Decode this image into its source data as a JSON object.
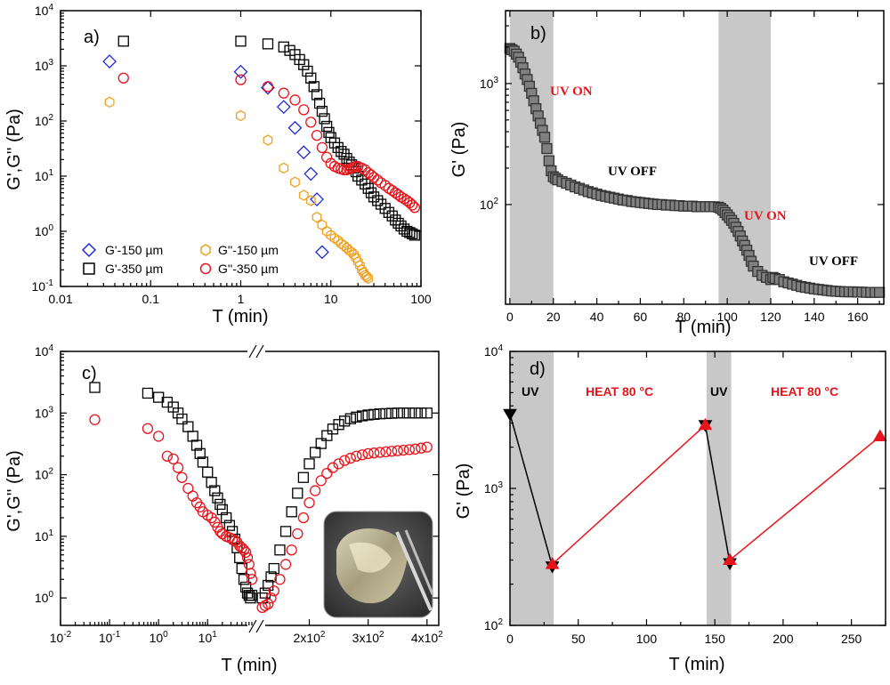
{
  "panels": {
    "a": {
      "label": "a)",
      "xlabel": "T (min)",
      "ylabel": "G',G'' (Pa)",
      "x_ticks": [
        "0.01",
        "0.1",
        "1",
        "10",
        "100"
      ],
      "legend": [
        "G'-150 µm",
        "G''-150 µm",
        "G'-350 µm",
        "G''-350 µm"
      ]
    },
    "b": {
      "label": "b)",
      "xlabel": "T (min)",
      "ylabel": "G' (Pa)",
      "x_ticks": [
        "0",
        "20",
        "40",
        "60",
        "80",
        "100",
        "120",
        "140",
        "160"
      ],
      "annotations": [
        "UV ON",
        "UV OFF",
        "UV ON",
        "UV OFF"
      ]
    },
    "c": {
      "label": "c)",
      "xlabel": "T (min)",
      "ylabel": "G',G'' (Pa)",
      "x_ticks_left": [
        "10",
        "10",
        "10",
        "10"
      ],
      "x_ticks_left_exp": [
        "-2",
        "-1",
        "0",
        "1"
      ],
      "x_ticks_right": [
        "2x10",
        "3x10",
        "4x10"
      ],
      "x_ticks_right_exp": [
        "2",
        "2",
        "2"
      ]
    },
    "d": {
      "label": "d)",
      "xlabel": "T (min)",
      "ylabel": "G' (Pa)",
      "x_ticks": [
        "0",
        "50",
        "100",
        "150",
        "200",
        "250"
      ],
      "annotations": [
        "UV",
        "HEAT 80 °C",
        "UV",
        "HEAT 80 °C"
      ]
    }
  },
  "colors": {
    "black": "#000000",
    "blue": "#1f2bd6",
    "orange": "#f0a020",
    "red": "#e8141b",
    "shade": "#c8c8c8",
    "gray_marker": "#808080"
  },
  "chart_data": [
    {
      "panel": "a",
      "type": "scatter",
      "x_scale": "log",
      "y_scale": "log",
      "xlim": [
        0.01,
        100
      ],
      "ylim": [
        0.1,
        10000
      ],
      "series": [
        {
          "name": "G'-150 µm",
          "marker": "diamond",
          "color": "blue",
          "x": [
            0.035,
            1,
            2,
            3,
            4,
            5,
            6,
            7,
            8
          ],
          "y": [
            1200,
            780,
            400,
            180,
            75,
            27,
            11,
            3.8,
            0.42
          ]
        },
        {
          "name": "G''-150 µm",
          "marker": "hexagon",
          "color": "orange",
          "x": [
            0.035,
            1,
            2,
            3,
            4,
            5,
            6,
            7,
            8,
            9,
            10,
            11,
            12,
            13,
            14,
            15,
            16,
            17,
            18,
            19,
            20,
            21,
            22,
            23,
            24,
            25,
            26
          ],
          "y": [
            220,
            125,
            45,
            14,
            7.8,
            4.5,
            3.6,
            1.8,
            1.3,
            1.0,
            0.85,
            0.75,
            0.68,
            0.6,
            0.55,
            0.5,
            0.45,
            0.42,
            0.38,
            0.33,
            0.28,
            0.24,
            0.2,
            0.18,
            0.16,
            0.15,
            0.14
          ]
        },
        {
          "name": "G'-350 µm",
          "marker": "square",
          "color": "black",
          "x": [
            0.05,
            1,
            2,
            3,
            3.5,
            4,
            4.5,
            5,
            5.5,
            6,
            6.5,
            7,
            7.5,
            8,
            8.5,
            9,
            9.5,
            10,
            11,
            12,
            13,
            14,
            15,
            16,
            17,
            18,
            19,
            20,
            22,
            24,
            26,
            28,
            30,
            33,
            36,
            40,
            44,
            48,
            52,
            56,
            60,
            65,
            70,
            75,
            80,
            85
          ],
          "y": [
            2800,
            2800,
            2500,
            2200,
            1900,
            1600,
            1300,
            1050,
            800,
            600,
            420,
            300,
            210,
            150,
            110,
            80,
            62,
            50,
            40,
            33,
            28,
            25,
            21,
            18,
            16,
            14,
            12,
            10,
            8.5,
            7.2,
            6,
            5,
            4.2,
            3.6,
            3.1,
            2.6,
            2.2,
            1.9,
            1.6,
            1.4,
            1.25,
            1.1,
            1.0,
            0.95,
            0.9,
            0.85
          ]
        },
        {
          "name": "G''-350 µm",
          "marker": "circle",
          "color": "red",
          "x": [
            0.05,
            1,
            2,
            3,
            4,
            5,
            6,
            7,
            8,
            9,
            10,
            11,
            12,
            13,
            14,
            15,
            16,
            17,
            18,
            19,
            20,
            22,
            24,
            26,
            28,
            30,
            33,
            36,
            40,
            44,
            48,
            52,
            56,
            60,
            65,
            70,
            75,
            80,
            85
          ],
          "y": [
            600,
            560,
            420,
            320,
            240,
            160,
            95,
            55,
            33,
            22,
            17,
            15,
            14,
            13.5,
            13,
            13,
            13.5,
            14,
            14.5,
            15,
            15,
            14,
            13,
            11.5,
            10.5,
            9.5,
            8.5,
            7.6,
            6.8,
            6.0,
            5.5,
            5.0,
            4.6,
            4.2,
            3.9,
            3.6,
            3.3,
            3.0,
            2.7
          ]
        }
      ]
    },
    {
      "panel": "b",
      "type": "scatter",
      "x_scale": "linear",
      "y_scale": "log",
      "xlim": [
        -2,
        172
      ],
      "ylim": [
        15,
        4000
      ],
      "shaded_x": [
        [
          0,
          20
        ],
        [
          96,
          120
        ]
      ],
      "series": [
        {
          "name": "G'",
          "marker": "square",
          "color": "gray_marker",
          "x": [
            0,
            1,
            2,
            3,
            4,
            5,
            6,
            7,
            8,
            9,
            10,
            11,
            12,
            13,
            14,
            15,
            16,
            17,
            18,
            19,
            20,
            21,
            22,
            24,
            26,
            28,
            30,
            32,
            34,
            36,
            38,
            40,
            42,
            44,
            46,
            48,
            50,
            52,
            54,
            56,
            58,
            60,
            62,
            64,
            66,
            68,
            70,
            72,
            74,
            76,
            78,
            80,
            82,
            84,
            86,
            88,
            90,
            92,
            94,
            96,
            97,
            98,
            99,
            100,
            101,
            102,
            103,
            104,
            105,
            106,
            107,
            108,
            109,
            110,
            111,
            112,
            114,
            116,
            118,
            120,
            121,
            122,
            124,
            126,
            128,
            130,
            132,
            134,
            136,
            138,
            140,
            142,
            144,
            146,
            148,
            150,
            152,
            154,
            156,
            158,
            160,
            162,
            164,
            166,
            168,
            170
          ],
          "y": [
            1950,
            1900,
            1850,
            1750,
            1650,
            1500,
            1350,
            1200,
            1080,
            950,
            830,
            720,
            620,
            540,
            470,
            410,
            360,
            290,
            230,
            190,
            170,
            165,
            160,
            155,
            150,
            145,
            140,
            136,
            132,
            128,
            125,
            122,
            119,
            117,
            115,
            113,
            111,
            109,
            108,
            106,
            105,
            104,
            103,
            102,
            101,
            100,
            100,
            99,
            99,
            98,
            98,
            97,
            97,
            97,
            96,
            96,
            96,
            96,
            96,
            95,
            93,
            90,
            86,
            82,
            78,
            74,
            70,
            65,
            60,
            55,
            50,
            46,
            42,
            38,
            34,
            31,
            28,
            26,
            25,
            24,
            25,
            24.5,
            24,
            23,
            22.5,
            22,
            21.5,
            21,
            20.7,
            20.4,
            20.1,
            19.9,
            19.7,
            19.5,
            19.3,
            19.2,
            19.1,
            19,
            19,
            19,
            18.9,
            18.9,
            18.8,
            18.8,
            18.8,
            18.8
          ]
        }
      ]
    },
    {
      "panel": "c",
      "type": "scatter",
      "x_scale": "broken-log-linear",
      "y_scale": "log",
      "ylim": [
        0.5,
        10000
      ],
      "series": [
        {
          "name": "G'",
          "marker": "square",
          "color": "black",
          "x": [
            0.05,
            0.6,
            1,
            1.5,
            2,
            2.5,
            3,
            4,
            5,
            6,
            7,
            8,
            10,
            12,
            14,
            16,
            18,
            20,
            24,
            28,
            32,
            36,
            40,
            45,
            50,
            55,
            60,
            65,
            70,
            75,
            80,
            120,
            125,
            130,
            135,
            140,
            150,
            160,
            170,
            180,
            190,
            200,
            210,
            220,
            230,
            240,
            250,
            260,
            270,
            280,
            290,
            300,
            310,
            320,
            330,
            340,
            350,
            360,
            370,
            380,
            390,
            400
          ],
          "y": [
            2600,
            2100,
            1800,
            1500,
            1250,
            1000,
            800,
            600,
            420,
            300,
            220,
            160,
            110,
            75,
            55,
            42,
            33,
            27,
            20,
            15,
            12,
            9,
            6.5,
            4.5,
            3,
            2,
            1.5,
            1.2,
            1.1,
            1.0,
            1.1,
            1.0,
            1.2,
            1.6,
            2.2,
            3,
            6,
            12,
            25,
            50,
            90,
            150,
            230,
            320,
            430,
            550,
            650,
            740,
            810,
            860,
            900,
            930,
            950,
            970,
            980,
            990,
            1000,
            1000,
            1000,
            1000,
            1000,
            1000
          ]
        },
        {
          "name": "G''",
          "marker": "circle",
          "color": "red",
          "x": [
            0.05,
            0.6,
            1,
            1.5,
            2,
            2.5,
            3,
            4,
            5,
            6,
            7,
            8,
            10,
            12,
            14,
            16,
            18,
            20,
            24,
            28,
            32,
            36,
            40,
            45,
            50,
            55,
            60,
            65,
            70,
            75,
            80,
            120,
            125,
            130,
            135,
            140,
            150,
            160,
            170,
            180,
            190,
            200,
            210,
            220,
            230,
            240,
            250,
            260,
            270,
            280,
            290,
            300,
            310,
            320,
            330,
            340,
            350,
            360,
            370,
            380,
            390,
            400
          ],
          "y": [
            780,
            560,
            420,
            200,
            180,
            130,
            90,
            60,
            45,
            35,
            30,
            25,
            22,
            20,
            17,
            14,
            12,
            11,
            10,
            9.5,
            9,
            8.5,
            8,
            7,
            6.5,
            6,
            5.5,
            4.5,
            3.5,
            2.5,
            2.0,
            0.7,
            0.75,
            0.8,
            1.0,
            1.3,
            2,
            3.5,
            6,
            11,
            20,
            35,
            55,
            80,
            105,
            130,
            150,
            170,
            185,
            200,
            210,
            220,
            225,
            230,
            235,
            240,
            245,
            250,
            255,
            260,
            270,
            280
          ]
        }
      ]
    },
    {
      "panel": "d",
      "type": "line",
      "x_scale": "linear",
      "y_scale": "log",
      "xlim": [
        0,
        275
      ],
      "ylim": [
        100,
        10000
      ],
      "shaded_x": [
        [
          0,
          32
        ],
        [
          144,
          162
        ]
      ],
      "series": [
        {
          "name": "UV",
          "marker": "triangle-down",
          "color": "black",
          "segments": [
            {
              "x": [
                0,
                31
              ],
              "y": [
                3500,
                270
              ]
            },
            {
              "x": [
                143,
                161
              ],
              "y": [
                2900,
                285
              ]
            }
          ]
        },
        {
          "name": "HEAT 80 °C",
          "marker": "triangle-up",
          "color": "red",
          "segments": [
            {
              "x": [
                31,
                143
              ],
              "y": [
                280,
                2900
              ]
            },
            {
              "x": [
                161,
                271
              ],
              "y": [
                300,
                2400
              ]
            }
          ]
        }
      ]
    }
  ]
}
